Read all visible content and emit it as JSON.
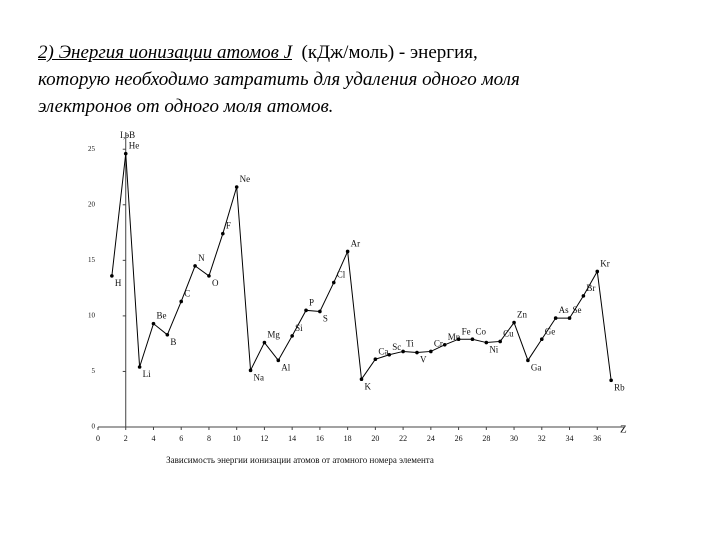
{
  "heading": [
    "2) Энергия ионизации атомов J",
    "(кДж/моль) - энергия,",
    "которую необходимо затратить для удаления одного моля",
    "электронов от одного моля атомов."
  ],
  "chart_data": {
    "type": "line",
    "title": "Зависимость энергии ионизации атомов от атомного номера элемента",
    "y_label": "I,эВ",
    "x_label": "Z",
    "x": [
      1,
      2,
      3,
      4,
      5,
      6,
      7,
      8,
      9,
      10,
      11,
      12,
      13,
      14,
      15,
      16,
      17,
      18,
      19,
      20,
      21,
      22,
      23,
      24,
      25,
      26,
      27,
      28,
      29,
      30,
      31,
      32,
      33,
      34,
      35,
      36,
      37
    ],
    "point_labels": [
      "H",
      "He",
      "Li",
      "Be",
      "B",
      "C",
      "N",
      "O",
      "F",
      "Ne",
      "Na",
      "Mg",
      "Al",
      "Si",
      "P",
      "S",
      "Cl",
      "Ar",
      "K",
      "Ca",
      "Sc",
      "Ti",
      "V",
      "Cr",
      "Mn",
      "Fe",
      "Co",
      "Ni",
      "Cu",
      "Zn",
      "Ga",
      "Ge",
      "As",
      "Se",
      "Br",
      "Kr",
      "Rb"
    ],
    "values": [
      13.6,
      24.6,
      5.4,
      9.3,
      8.3,
      11.3,
      14.5,
      13.6,
      17.4,
      21.6,
      5.1,
      7.6,
      6.0,
      8.2,
      10.5,
      10.4,
      13.0,
      15.8,
      4.3,
      6.1,
      6.5,
      6.8,
      6.7,
      6.8,
      7.4,
      7.9,
      7.9,
      7.6,
      7.7,
      9.4,
      6.0,
      7.9,
      9.8,
      9.8,
      11.8,
      14.0,
      4.2
    ],
    "color": "#000000",
    "xlim": [
      0,
      38
    ],
    "xticks": [
      0,
      2,
      4,
      6,
      8,
      10,
      12,
      14,
      16,
      18,
      20,
      22,
      24,
      26,
      28,
      30,
      32,
      34,
      36
    ],
    "ylim": [
      0,
      27
    ],
    "yticks": [
      0,
      5,
      10,
      15,
      20,
      25
    ]
  }
}
